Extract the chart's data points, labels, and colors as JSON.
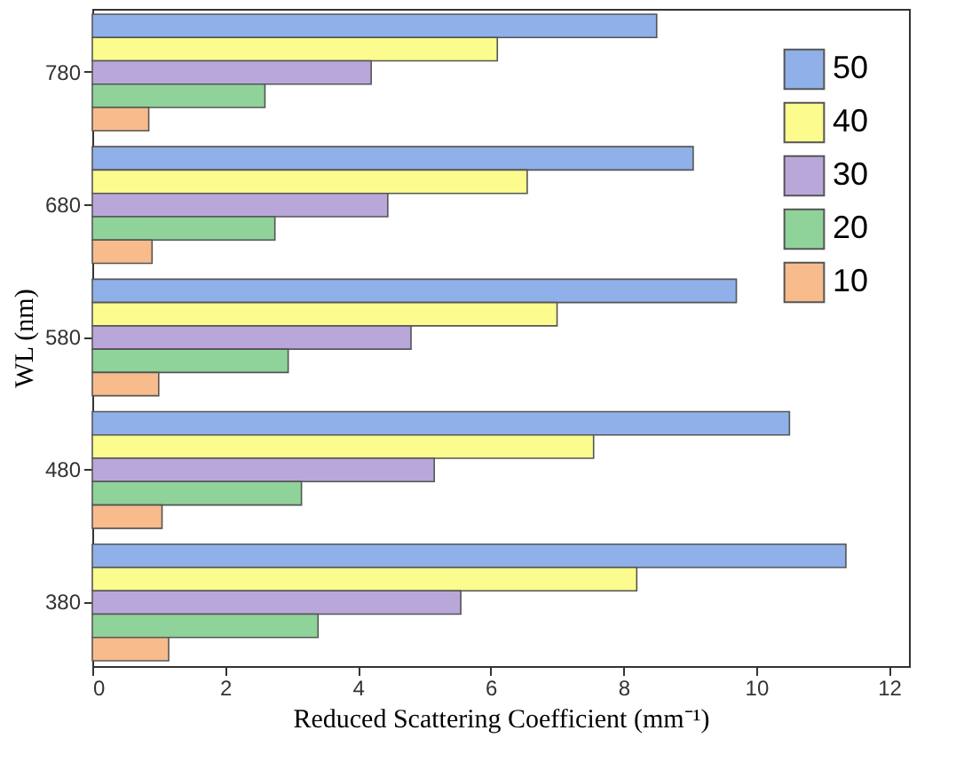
{
  "chart_data": {
    "type": "bar",
    "orientation": "horizontal",
    "xlabel": "Reduced Scattering Coefficient (mm⁻¹)",
    "ylabel": "WL (nm)",
    "categories": [
      "780",
      "680",
      "580",
      "480",
      "380"
    ],
    "series": [
      {
        "name": "50",
        "color": "#8fb0e8",
        "values": [
          8.5,
          9.05,
          9.7,
          10.5,
          11.35
        ]
      },
      {
        "name": "40",
        "color": "#fbfb8e",
        "values": [
          6.1,
          6.55,
          7.0,
          7.55,
          8.2
        ]
      },
      {
        "name": "30",
        "color": "#b9a7d9",
        "values": [
          4.2,
          4.45,
          4.8,
          5.15,
          5.55
        ]
      },
      {
        "name": "20",
        "color": "#8fd39a",
        "values": [
          2.6,
          2.75,
          2.95,
          3.15,
          3.4
        ]
      },
      {
        "name": "10",
        "color": "#f7bb8c",
        "values": [
          0.85,
          0.9,
          1.0,
          1.05,
          1.15
        ]
      }
    ],
    "xlim": [
      0,
      12.3
    ],
    "xticks": [
      0,
      2,
      4,
      6,
      8,
      10,
      12
    ],
    "grid": false,
    "legend": "top right"
  }
}
